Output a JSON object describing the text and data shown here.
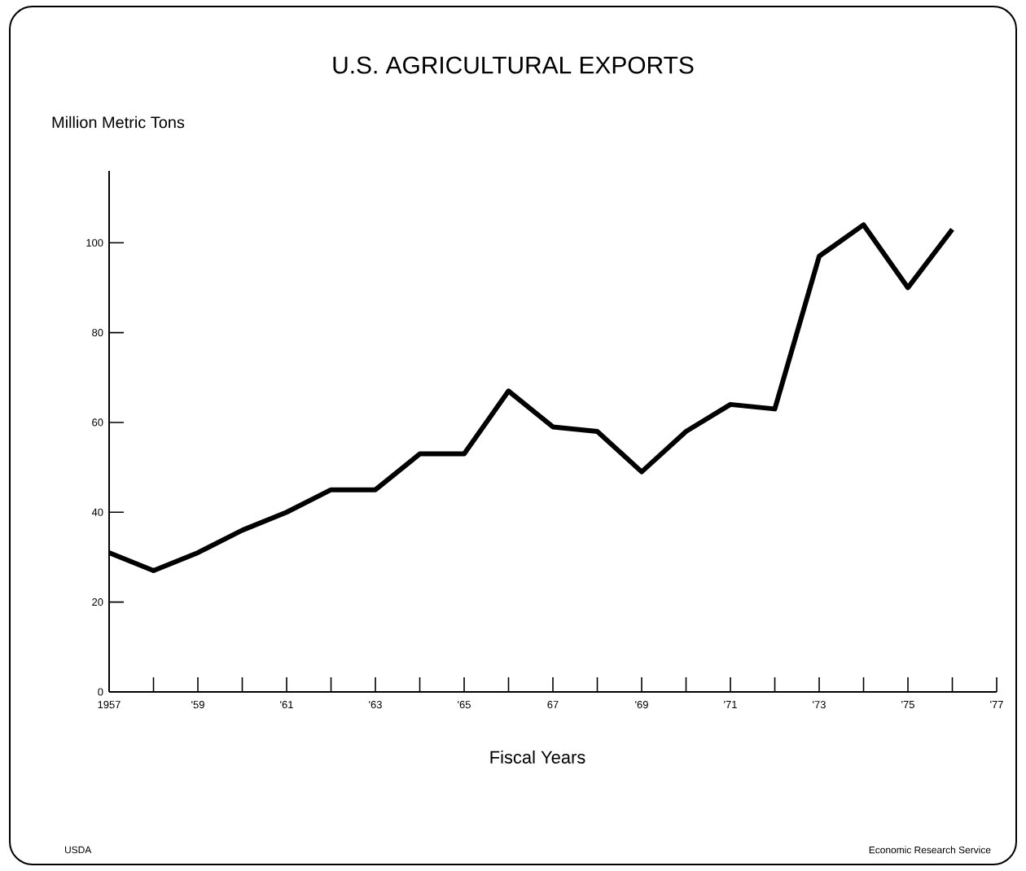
{
  "chart_data": {
    "type": "line",
    "title": "U.S. AGRICULTURAL EXPORTS",
    "ylabel": "Million Metric Tons",
    "xlabel": "Fiscal Years",
    "annotations": [
      "USDA",
      "Economic Research Service"
    ],
    "x": [
      1957,
      1958,
      1959,
      1960,
      1961,
      1962,
      1963,
      1964,
      1965,
      1966,
      1967,
      1968,
      1969,
      1970,
      1971,
      1972,
      1973,
      1974,
      1975,
      1976
    ],
    "values": [
      31,
      27,
      31,
      36,
      40,
      45,
      45,
      53,
      53,
      67,
      59,
      58,
      49,
      58,
      64,
      63,
      97,
      104,
      90,
      103
    ],
    "color": "#000000",
    "marker": "none",
    "line_style": "solid",
    "xlim": [
      1957,
      1977
    ],
    "ylim": [
      0,
      116
    ],
    "xticks": [
      {
        "value": 1957,
        "label": "1957"
      },
      {
        "value": 1958,
        "label": null
      },
      {
        "value": 1959,
        "label": "'59"
      },
      {
        "value": 1960,
        "label": null
      },
      {
        "value": 1961,
        "label": "'61"
      },
      {
        "value": 1962,
        "label": null
      },
      {
        "value": 1963,
        "label": "'63"
      },
      {
        "value": 1964,
        "label": null
      },
      {
        "value": 1965,
        "label": "'65"
      },
      {
        "value": 1966,
        "label": null
      },
      {
        "value": 1967,
        "label": "67"
      },
      {
        "value": 1968,
        "label": null
      },
      {
        "value": 1969,
        "label": "'69"
      },
      {
        "value": 1970,
        "label": null
      },
      {
        "value": 1971,
        "label": "'71"
      },
      {
        "value": 1972,
        "label": null
      },
      {
        "value": 1973,
        "label": "'73"
      },
      {
        "value": 1974,
        "label": null
      },
      {
        "value": 1975,
        "label": "'75"
      },
      {
        "value": 1976,
        "label": null
      },
      {
        "value": 1977,
        "label": "'77"
      }
    ],
    "yticks": [
      0,
      20,
      40,
      60,
      80,
      100
    ]
  }
}
